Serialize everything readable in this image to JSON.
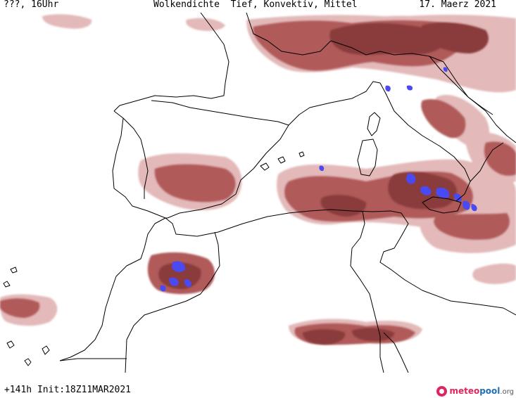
{
  "header": {
    "left": "???, 16Uhr",
    "title": "Wolkendichte  Tief, Konvektiv, Mittel",
    "date": "17. Maerz 2021"
  },
  "footer": {
    "run_info": "+141h Init:18Z11MAR2021",
    "brand_name_part1": "meteo",
    "brand_name_part2": "pool",
    "brand_tld": ".org"
  },
  "legend_colors": {
    "low_density": "#e3b9b9",
    "medium_density": "#b05a5a",
    "high_density": "#8a3a3a",
    "convective": "#4a4af2",
    "coastline": "#000000"
  }
}
